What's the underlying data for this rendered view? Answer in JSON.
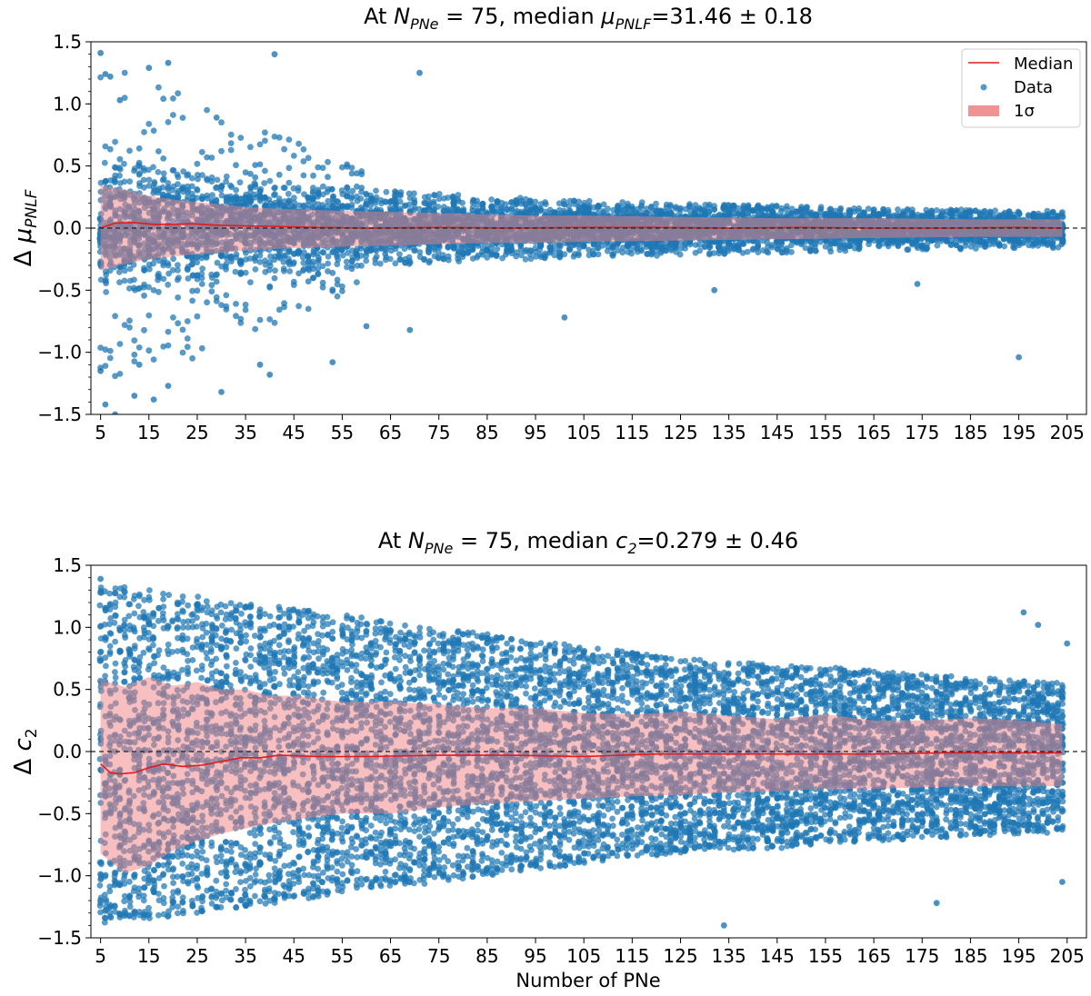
{
  "chart_data": [
    {
      "type": "scatter",
      "title_prefix": "At ",
      "title_var": "N",
      "title_var_sub": "PNe",
      "title_mid": " = 75, median ",
      "title_param": "μ",
      "title_param_sub": "PNLF",
      "title_suffix": "=31.46 ± 0.18",
      "ylabel_delta": "Δ",
      "ylabel_symbol": "μ",
      "ylabel_sub": "PNLF",
      "xlabel": "",
      "xlim": [
        3,
        209
      ],
      "ylim": [
        -1.5,
        1.5
      ],
      "x_ticks": [
        5,
        15,
        25,
        35,
        45,
        55,
        65,
        75,
        85,
        95,
        105,
        115,
        125,
        135,
        145,
        155,
        165,
        175,
        185,
        195,
        205
      ],
      "y_ticks": [
        1.5,
        1.0,
        0.5,
        0.0,
        -0.5,
        -1.0,
        -1.5
      ],
      "y_tick_labels": [
        "1.5",
        "1.0",
        "0.5",
        "0.0",
        "−0.5",
        "−1.0",
        "−1.5"
      ],
      "reference_line": 0.0,
      "legend": [
        "Median",
        "Data",
        "1σ"
      ],
      "legend_position": "top-right",
      "series": [
        {
          "name": "Median",
          "x": [
            5,
            8,
            12,
            16,
            20,
            24,
            28,
            32,
            40,
            50,
            60,
            75,
            90,
            105,
            120,
            135,
            150,
            165,
            180,
            195,
            204
          ],
          "y": [
            0.0,
            0.04,
            0.045,
            0.03,
            0.03,
            0.035,
            0.025,
            0.02,
            0.015,
            0.005,
            0.0,
            0.005,
            0.0,
            0.005,
            0.005,
            0.0,
            0.005,
            0.0,
            0.0,
            0.005,
            0.0
          ]
        },
        {
          "name": "1σ",
          "x": [
            5,
            10,
            15,
            20,
            25,
            30,
            35,
            45,
            55,
            65,
            75,
            85,
            95,
            105,
            125,
            145,
            165,
            185,
            204
          ],
          "upper": [
            0.34,
            0.31,
            0.26,
            0.23,
            0.21,
            0.19,
            0.17,
            0.15,
            0.14,
            0.13,
            0.12,
            0.11,
            0.1,
            0.1,
            0.09,
            0.08,
            0.08,
            0.07,
            0.07
          ],
          "lower": [
            -0.34,
            -0.29,
            -0.25,
            -0.23,
            -0.21,
            -0.2,
            -0.18,
            -0.16,
            -0.15,
            -0.14,
            -0.13,
            -0.12,
            -0.12,
            -0.11,
            -0.1,
            -0.09,
            -0.08,
            -0.07,
            -0.07
          ]
        },
        {
          "name": "Data",
          "bulk_upper": [
            0.55,
            0.5,
            0.45,
            0.4,
            0.36,
            0.33,
            0.3,
            0.28,
            0.26,
            0.24,
            0.22,
            0.21,
            0.2,
            0.19,
            0.18,
            0.17,
            0.16,
            0.15,
            0.15,
            0.14,
            0.14
          ],
          "bulk_lower": [
            -0.55,
            -0.48,
            -0.42,
            -0.38,
            -0.35,
            -0.32,
            -0.3,
            -0.28,
            -0.26,
            -0.25,
            -0.24,
            -0.23,
            -0.22,
            -0.21,
            -0.2,
            -0.19,
            -0.18,
            -0.18,
            -0.17,
            -0.17,
            -0.17
          ],
          "outliers_x": [
            5,
            6,
            7,
            9,
            15,
            19,
            29,
            41,
            71,
            6,
            8,
            5,
            12,
            16,
            19,
            13,
            30,
            38,
            40,
            53,
            60,
            69,
            101,
            132,
            174,
            195
          ],
          "outliers_y": [
            1.41,
            1.24,
            1.22,
            1.03,
            1.29,
            1.33,
            0.89,
            1.4,
            1.25,
            -1.42,
            -1.5,
            -1.15,
            -1.35,
            -1.38,
            -1.27,
            -1.1,
            -1.32,
            -1.1,
            -1.18,
            -1.08,
            -0.79,
            -0.82,
            -0.72,
            -0.5,
            -0.45,
            -1.04
          ]
        }
      ]
    },
    {
      "type": "scatter",
      "title_prefix": "At ",
      "title_var": "N",
      "title_var_sub": "PNe",
      "title_mid": " = 75, median ",
      "title_param": "c",
      "title_param_sub": "2",
      "title_suffix": "=0.279 ± 0.46",
      "ylabel_delta": "Δ",
      "ylabel_symbol": "c",
      "ylabel_sub": "2",
      "xlabel": "Number of PNe",
      "xlim": [
        3,
        209
      ],
      "ylim": [
        -1.5,
        1.5
      ],
      "x_ticks": [
        5,
        15,
        25,
        35,
        45,
        55,
        65,
        75,
        85,
        95,
        105,
        115,
        125,
        135,
        145,
        155,
        165,
        175,
        185,
        195,
        205
      ],
      "y_ticks": [
        1.5,
        1.0,
        0.5,
        0.0,
        -0.5,
        -1.0,
        -1.5
      ],
      "y_tick_labels": [
        "1.5",
        "1.0",
        "0.5",
        "0.0",
        "−0.5",
        "−1.0",
        "−1.5"
      ],
      "reference_line": 0.0,
      "series": [
        {
          "name": "Median",
          "x": [
            5,
            7,
            9,
            12,
            15,
            18,
            22,
            26,
            30,
            34,
            38,
            42,
            50,
            60,
            75,
            90,
            105,
            120,
            135,
            150,
            165,
            180,
            195,
            204
          ],
          "y": [
            -0.1,
            -0.17,
            -0.18,
            -0.17,
            -0.13,
            -0.1,
            -0.12,
            -0.11,
            -0.08,
            -0.05,
            -0.05,
            -0.03,
            -0.04,
            -0.04,
            -0.03,
            -0.03,
            -0.04,
            -0.02,
            -0.02,
            -0.02,
            -0.02,
            -0.01,
            -0.01,
            -0.01
          ]
        },
        {
          "name": "1σ",
          "x": [
            5,
            10,
            15,
            20,
            25,
            30,
            35,
            40,
            45,
            55,
            65,
            75,
            85,
            95,
            105,
            115,
            125,
            135,
            145,
            155,
            165,
            175,
            185,
            195,
            204
          ],
          "upper": [
            0.58,
            0.52,
            0.6,
            0.53,
            0.56,
            0.5,
            0.5,
            0.45,
            0.45,
            0.4,
            0.4,
            0.38,
            0.35,
            0.35,
            0.31,
            0.3,
            0.32,
            0.29,
            0.26,
            0.3,
            0.25,
            0.25,
            0.27,
            0.25,
            0.22
          ],
          "lower": [
            -0.82,
            -0.98,
            -0.92,
            -0.8,
            -0.72,
            -0.66,
            -0.62,
            -0.58,
            -0.55,
            -0.5,
            -0.5,
            -0.45,
            -0.42,
            -0.4,
            -0.38,
            -0.36,
            -0.35,
            -0.33,
            -0.32,
            -0.3,
            -0.3,
            -0.29,
            -0.28,
            -0.28,
            -0.28
          ]
        },
        {
          "name": "Data",
          "bulk_upper": [
            1.35,
            1.3,
            1.25,
            1.2,
            1.15,
            1.1,
            1.05,
            1.0,
            0.95,
            0.9,
            0.85,
            0.8,
            0.75,
            0.72,
            0.7,
            0.68,
            0.65,
            0.62,
            0.6,
            0.58,
            0.55
          ],
          "bulk_lower": [
            -1.38,
            -1.35,
            -1.3,
            -1.25,
            -1.2,
            -1.15,
            -1.1,
            -1.05,
            -1.0,
            -0.95,
            -0.9,
            -0.85,
            -0.82,
            -0.8,
            -0.78,
            -0.75,
            -0.72,
            -0.7,
            -0.68,
            -0.66,
            -0.65
          ],
          "outliers_x": [
            134,
            196,
            199,
            205,
            204,
            178,
            5
          ],
          "outliers_y": [
            -1.4,
            1.12,
            1.02,
            0.87,
            -1.05,
            -1.22,
            1.39
          ]
        }
      ]
    }
  ]
}
